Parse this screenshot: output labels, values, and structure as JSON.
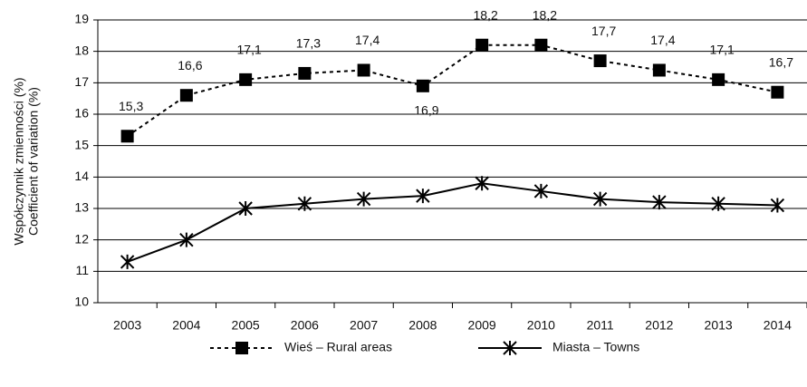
{
  "chart_data": {
    "type": "line",
    "y_label_lines": [
      "Współczynnik zmienności (%)",
      "Coefficient of variation (%)"
    ],
    "categories": [
      "2003",
      "2004",
      "2005",
      "2006",
      "2007",
      "2008",
      "2009",
      "2010",
      "2011",
      "2012",
      "2013",
      "2014"
    ],
    "series": [
      {
        "name": "Wieś – Rural areas",
        "color": "#000000",
        "dash": true,
        "marker": "square",
        "values": [
          15.3,
          16.6,
          17.1,
          17.3,
          17.4,
          16.9,
          18.2,
          18.2,
          17.7,
          17.4,
          17.1,
          16.7
        ],
        "value_labels": [
          "15,3",
          "16,6",
          "17,1",
          "17,3",
          "17,4",
          "16,9",
          "18,2",
          "18,2",
          "17,7",
          "17,4",
          "17,1",
          "16,7"
        ]
      },
      {
        "name": "Miasta – Towns",
        "color": "#000000",
        "dash": false,
        "marker": "star",
        "values": [
          11.3,
          12.0,
          13.0,
          13.15,
          13.3,
          13.4,
          13.8,
          13.55,
          13.3,
          13.2,
          13.15,
          13.1
        ]
      }
    ],
    "ylim": [
      10,
      19
    ],
    "yticks": [
      10,
      11,
      12,
      13,
      14,
      15,
      16,
      17,
      18,
      19
    ],
    "grid": true
  }
}
